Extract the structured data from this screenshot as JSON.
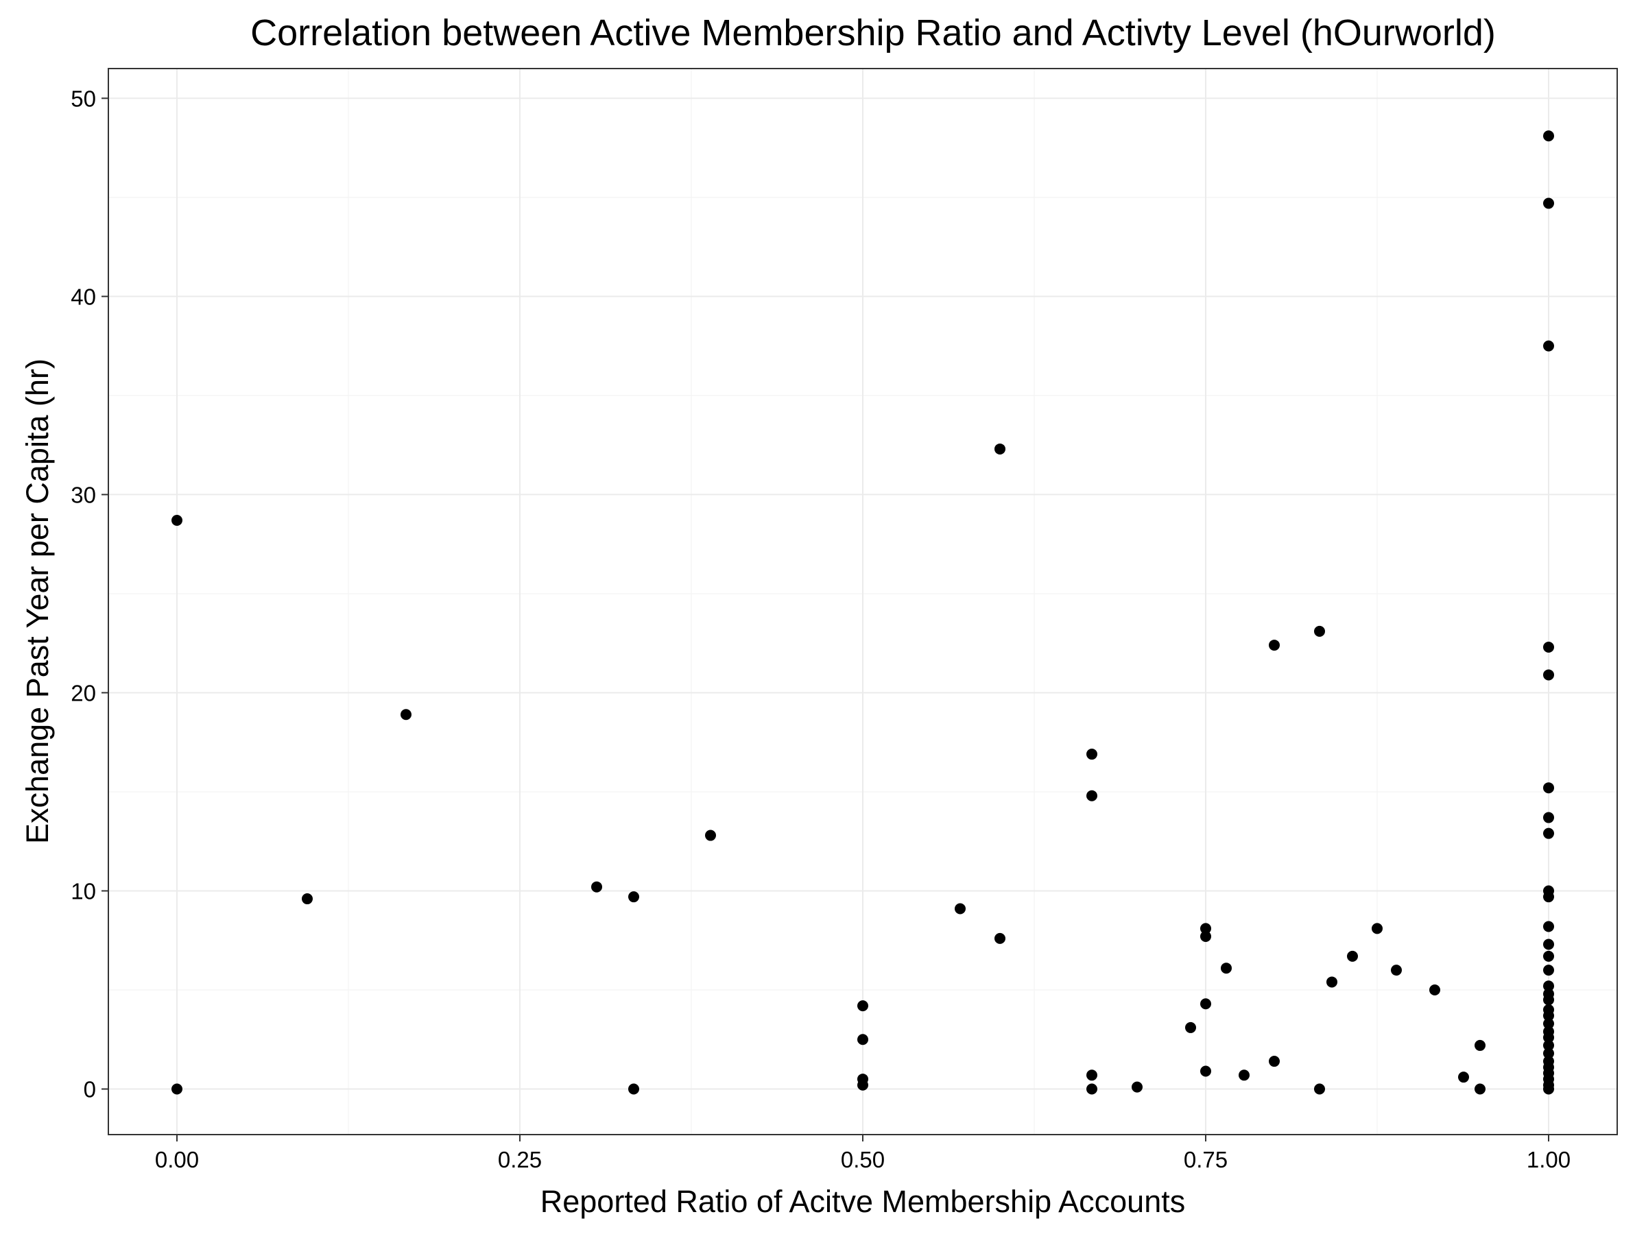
{
  "chart_data": {
    "type": "scatter",
    "title": "Correlation between Active Membership Ratio and Activty Level (hOurworld)",
    "xlabel": "Reported Ratio of Acitve Membership Accounts",
    "ylabel": "Exchange Past Year per Capita (hr)",
    "xlim": [
      -0.05,
      1.05
    ],
    "ylim": [
      -2.3,
      51.5
    ],
    "xticks": [
      0.0,
      0.25,
      0.5,
      0.75,
      1.0
    ],
    "xtick_labels": [
      "0.00",
      "0.25",
      "0.50",
      "0.75",
      "1.00"
    ],
    "yticks": [
      0,
      10,
      20,
      30,
      40,
      50
    ],
    "ytick_labels": [
      "0",
      "10",
      "20",
      "30",
      "40",
      "50"
    ],
    "grid": true,
    "point_color": "#000000",
    "points": [
      {
        "x": 0.0,
        "y": 28.7
      },
      {
        "x": 0.0,
        "y": 0.0
      },
      {
        "x": 0.095,
        "y": 9.6
      },
      {
        "x": 0.167,
        "y": 18.9
      },
      {
        "x": 0.306,
        "y": 10.2
      },
      {
        "x": 0.333,
        "y": 9.7
      },
      {
        "x": 0.333,
        "y": 0.0
      },
      {
        "x": 0.389,
        "y": 12.8
      },
      {
        "x": 0.5,
        "y": 4.2
      },
      {
        "x": 0.5,
        "y": 2.5
      },
      {
        "x": 0.5,
        "y": 0.5
      },
      {
        "x": 0.5,
        "y": 0.2
      },
      {
        "x": 0.571,
        "y": 9.1
      },
      {
        "x": 0.6,
        "y": 32.3
      },
      {
        "x": 0.6,
        "y": 7.6
      },
      {
        "x": 0.667,
        "y": 16.9
      },
      {
        "x": 0.667,
        "y": 14.8
      },
      {
        "x": 0.667,
        "y": 0.7
      },
      {
        "x": 0.667,
        "y": 0.0
      },
      {
        "x": 0.7,
        "y": 0.1
      },
      {
        "x": 0.739,
        "y": 3.1
      },
      {
        "x": 0.75,
        "y": 8.1
      },
      {
        "x": 0.75,
        "y": 7.7
      },
      {
        "x": 0.75,
        "y": 4.3
      },
      {
        "x": 0.75,
        "y": 0.9
      },
      {
        "x": 0.765,
        "y": 6.1
      },
      {
        "x": 0.778,
        "y": 0.7
      },
      {
        "x": 0.8,
        "y": 22.4
      },
      {
        "x": 0.8,
        "y": 1.4
      },
      {
        "x": 0.833,
        "y": 23.1
      },
      {
        "x": 0.833,
        "y": 0.0
      },
      {
        "x": 0.842,
        "y": 5.4
      },
      {
        "x": 0.857,
        "y": 6.7
      },
      {
        "x": 0.875,
        "y": 8.1
      },
      {
        "x": 0.889,
        "y": 6.0
      },
      {
        "x": 0.917,
        "y": 5.0
      },
      {
        "x": 0.938,
        "y": 0.6
      },
      {
        "x": 0.95,
        "y": 2.2
      },
      {
        "x": 0.95,
        "y": 0.0
      },
      {
        "x": 1.0,
        "y": 48.1
      },
      {
        "x": 1.0,
        "y": 44.7
      },
      {
        "x": 1.0,
        "y": 37.5
      },
      {
        "x": 1.0,
        "y": 22.3
      },
      {
        "x": 1.0,
        "y": 20.9
      },
      {
        "x": 1.0,
        "y": 15.2
      },
      {
        "x": 1.0,
        "y": 13.7
      },
      {
        "x": 1.0,
        "y": 12.9
      },
      {
        "x": 1.0,
        "y": 10.0
      },
      {
        "x": 1.0,
        "y": 9.7
      },
      {
        "x": 1.0,
        "y": 8.2
      },
      {
        "x": 1.0,
        "y": 7.3
      },
      {
        "x": 1.0,
        "y": 6.7
      },
      {
        "x": 1.0,
        "y": 6.0
      },
      {
        "x": 1.0,
        "y": 5.2
      },
      {
        "x": 1.0,
        "y": 4.8
      },
      {
        "x": 1.0,
        "y": 4.5
      },
      {
        "x": 1.0,
        "y": 4.0
      },
      {
        "x": 1.0,
        "y": 3.7
      },
      {
        "x": 1.0,
        "y": 3.3
      },
      {
        "x": 1.0,
        "y": 2.9
      },
      {
        "x": 1.0,
        "y": 2.6
      },
      {
        "x": 1.0,
        "y": 2.2
      },
      {
        "x": 1.0,
        "y": 1.8
      },
      {
        "x": 1.0,
        "y": 1.4
      },
      {
        "x": 1.0,
        "y": 1.1
      },
      {
        "x": 1.0,
        "y": 0.8
      },
      {
        "x": 1.0,
        "y": 0.5
      },
      {
        "x": 1.0,
        "y": 0.2
      },
      {
        "x": 1.0,
        "y": 0.0
      }
    ]
  }
}
